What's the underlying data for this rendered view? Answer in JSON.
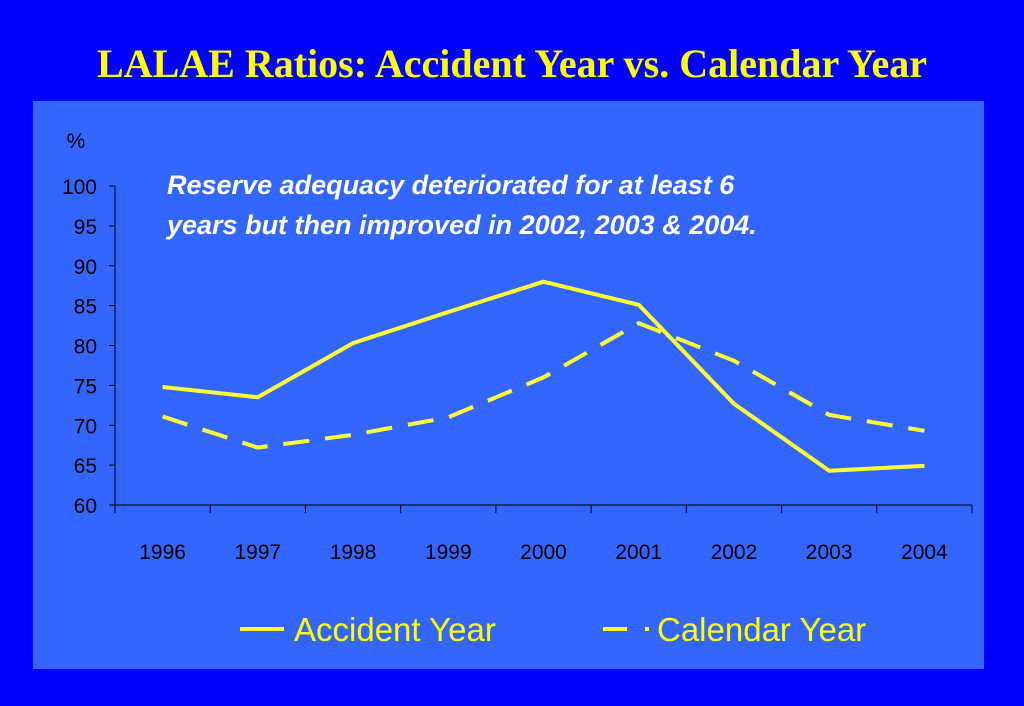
{
  "slide": {
    "title": "LALAE Ratios: Accident Year vs. Calendar Year",
    "background": "#0000ff",
    "panel_color": "#3366ff",
    "title_color": "#ffff00"
  },
  "chart_data": {
    "type": "line",
    "title": "",
    "ylabel": "%",
    "xlabel": "",
    "categories": [
      "1996",
      "1997",
      "1998",
      "1999",
      "2000",
      "2001",
      "2002",
      "2003",
      "2004"
    ],
    "ylim": [
      60,
      100
    ],
    "yticks": [
      60,
      65,
      70,
      75,
      80,
      85,
      90,
      95,
      100
    ],
    "grid": false,
    "legend_position": "bottom",
    "annotation_lines": [
      "Reserve adequacy deteriorated for at least 6",
      "years but then improved in 2002, 2003 & 2004."
    ],
    "series": [
      {
        "name": "Accident Year",
        "style": "solid",
        "color": "#ffff33",
        "values": [
          74.8,
          73.5,
          80.3,
          84.2,
          88.0,
          85.1,
          72.7,
          64.3,
          64.9
        ]
      },
      {
        "name": "Calendar Year",
        "style": "dashed",
        "color": "#ffff33",
        "values": [
          71.1,
          67.2,
          68.8,
          71.0,
          76.0,
          82.8,
          78.1,
          71.3,
          69.3
        ]
      }
    ]
  }
}
